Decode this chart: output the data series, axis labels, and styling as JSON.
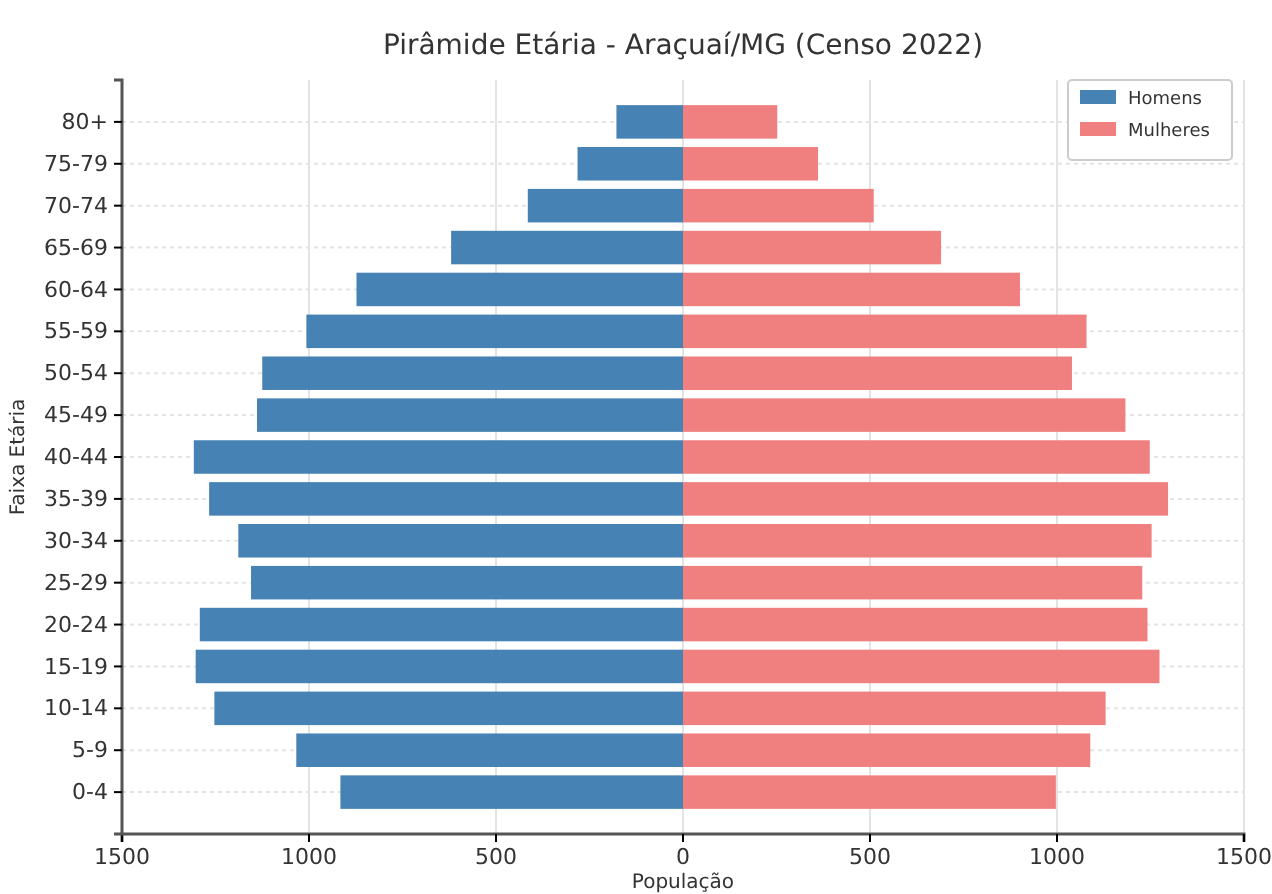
{
  "chart_data": {
    "type": "bar",
    "orientation": "horizontal",
    "stacked": true,
    "title": "Pirâmide Etária - Araçuaí/MG (Censo 2022)",
    "xlabel": "População",
    "ylabel": "Faixa Etária",
    "categories": [
      "80+",
      "75-79",
      "70-74",
      "65-69",
      "60-64",
      "55-59",
      "50-54",
      "45-49",
      "40-44",
      "35-39",
      "30-34",
      "25-29",
      "20-24",
      "15-19",
      "10-14",
      "5-9",
      "0-4"
    ],
    "series": [
      {
        "name": "Homens",
        "color": "#4682b4",
        "values": [
          -178,
          -282,
          -415,
          -620,
          -873,
          -1007,
          -1125,
          -1139,
          -1308,
          -1267,
          -1189,
          -1155,
          -1292,
          -1303,
          -1253,
          -1034,
          -916
        ]
      },
      {
        "name": "Mulheres",
        "color": "#f08080",
        "values": [
          252,
          361,
          510,
          690,
          901,
          1079,
          1040,
          1183,
          1248,
          1297,
          1253,
          1228,
          1242,
          1274,
          1130,
          1089,
          997
        ]
      }
    ],
    "xlim": [
      -1500,
      1500
    ],
    "xticks": [
      {
        "value": -1500,
        "label": "1500"
      },
      {
        "value": -1000,
        "label": "1000"
      },
      {
        "value": -500,
        "label": "500"
      },
      0,
      500,
      1000,
      1500
    ],
    "grid": true,
    "legend": "top right"
  }
}
